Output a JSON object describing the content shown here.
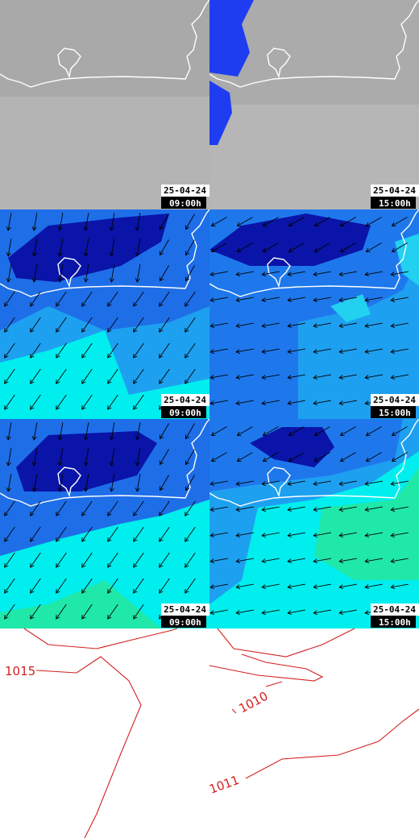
{
  "panels": [
    {
      "date": "25-04-24",
      "time": "09:00h"
    },
    {
      "date": "25-04-24",
      "time": "15:00h"
    },
    {
      "date": "25-04-24",
      "time": "09:00h"
    },
    {
      "date": "25-04-24",
      "time": "15:00h"
    },
    {
      "date": "25-04-24",
      "time": "09:00h"
    },
    {
      "date": "25-04-24",
      "time": "15:00h"
    }
  ],
  "isobar_labels": [
    "1015",
    "1010",
    "1011"
  ]
}
